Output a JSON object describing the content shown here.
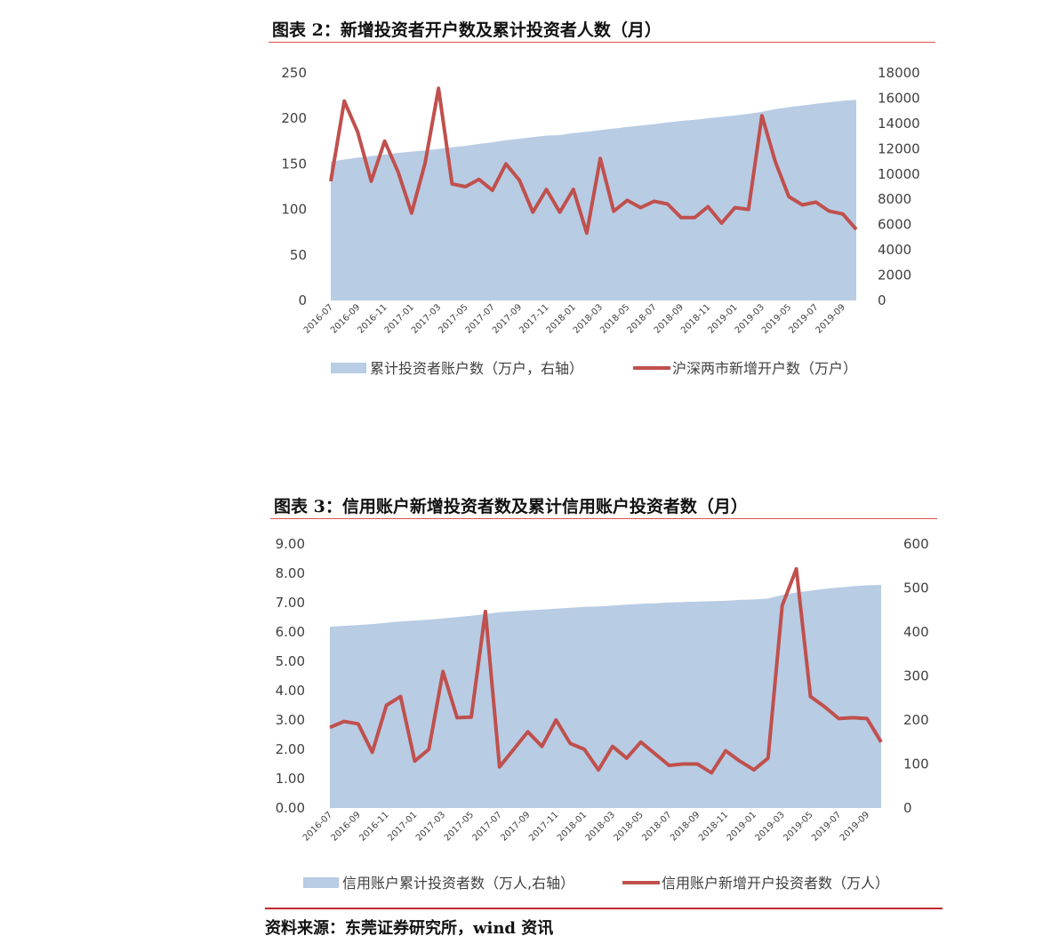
{
  "chart1_title": "图表 2：新增投资者开户数及累计投资者人数（月）",
  "chart2_title": "图表 3：信用账户新增投资者数及累计信用账户投资者数（月）",
  "source": "资料来源：东莞证券研究所，wind 资讯",
  "colors": {
    "area": "#b8cce4",
    "line": "#c0504d",
    "rule": "#d9534f"
  },
  "chart_data": [
    {
      "type": "line",
      "title": "图表 2：新增投资者开户数及累计投资者人数（月）",
      "x": [
        "2016-07",
        "2016-08",
        "2016-09",
        "2016-10",
        "2016-11",
        "2016-12",
        "2017-01",
        "2017-02",
        "2017-03",
        "2017-04",
        "2017-05",
        "2017-06",
        "2017-07",
        "2017-08",
        "2017-09",
        "2017-10",
        "2017-11",
        "2017-12",
        "2018-01",
        "2018-02",
        "2018-03",
        "2018-04",
        "2018-05",
        "2018-06",
        "2018-07",
        "2018-08",
        "2018-09",
        "2018-10",
        "2018-11",
        "2018-12",
        "2019-01",
        "2019-02",
        "2019-03",
        "2019-04",
        "2019-05",
        "2019-06",
        "2019-07",
        "2019-08",
        "2019-09",
        "2019-10"
      ],
      "x_tick_labels": [
        "2016-07",
        "2016-09",
        "2016-11",
        "2017-01",
        "2017-03",
        "2017-05",
        "2017-07",
        "2017-09",
        "2017-11",
        "2018-01",
        "2018-03",
        "2018-05",
        "2018-07",
        "2018-09",
        "2018-11",
        "2019-01",
        "2019-03",
        "2019-05",
        "2019-07",
        "2019-09"
      ],
      "y_left_ticks": [
        "0",
        "50",
        "100",
        "150",
        "200",
        "250"
      ],
      "y_right_ticks": [
        "0",
        "2000",
        "4000",
        "6000",
        "8000",
        "10000",
        "12000",
        "14000",
        "16000",
        "18000"
      ],
      "ylim_left": [
        0,
        250
      ],
      "ylim_right": [
        0,
        18000
      ],
      "grid": false,
      "legend_position": "bottom",
      "series": [
        {
          "name": "累计投资者账户数（万户，右轴）",
          "kind": "area",
          "axis": "right",
          "values": [
            10980,
            11150,
            11290,
            11420,
            11550,
            11670,
            11770,
            11860,
            11990,
            12120,
            12230,
            12380,
            12510,
            12670,
            12800,
            12920,
            13040,
            13080,
            13240,
            13340,
            13470,
            13600,
            13720,
            13840,
            13950,
            14080,
            14200,
            14290,
            14410,
            14520,
            14630,
            14760,
            14930,
            15140,
            15290,
            15420,
            15550,
            15680,
            15790,
            15880
          ]
        },
        {
          "name": "沪深两市新增开户数（万户）",
          "kind": "line",
          "axis": "left",
          "values": [
            131,
            219,
            185,
            131,
            175,
            141,
            96,
            151,
            233,
            128,
            125,
            133,
            121,
            150,
            132,
            97,
            122,
            97,
            122,
            74,
            156,
            98,
            110,
            102,
            109,
            106,
            91,
            91,
            103,
            85,
            102,
            100,
            203,
            152,
            114,
            105,
            108,
            98,
            95,
            78
          ]
        }
      ]
    },
    {
      "type": "line",
      "title": "图表 3：信用账户新增投资者数及累计信用账户投资者数（月）",
      "x": [
        "2016-07",
        "2016-08",
        "2016-09",
        "2016-10",
        "2016-11",
        "2016-12",
        "2017-01",
        "2017-02",
        "2017-03",
        "2017-04",
        "2017-05",
        "2017-06",
        "2017-07",
        "2017-08",
        "2017-09",
        "2017-10",
        "2017-11",
        "2017-12",
        "2018-01",
        "2018-02",
        "2018-03",
        "2018-04",
        "2018-05",
        "2018-06",
        "2018-07",
        "2018-08",
        "2018-09",
        "2018-10",
        "2018-11",
        "2018-12",
        "2019-01",
        "2019-02",
        "2019-03",
        "2019-04",
        "2019-05",
        "2019-06",
        "2019-07",
        "2019-08",
        "2019-09",
        "2019-10"
      ],
      "x_tick_labels": [
        "2016-07",
        "2016-09",
        "2016-11",
        "2017-01",
        "2017-03",
        "2017-05",
        "2017-07",
        "2017-09",
        "2017-11",
        "2018-01",
        "2018-03",
        "2018-05",
        "2018-07",
        "2018-09",
        "2018-11",
        "2019-01",
        "2019-03",
        "2019-05",
        "2019-07",
        "2019-09"
      ],
      "y_left_ticks": [
        "0.00",
        "1.00",
        "2.00",
        "3.00",
        "4.00",
        "5.00",
        "6.00",
        "7.00",
        "8.00",
        "9.00"
      ],
      "y_right_ticks": [
        "0",
        "100",
        "200",
        "300",
        "400",
        "500",
        "600"
      ],
      "ylim_left": [
        0,
        9
      ],
      "ylim_right": [
        0,
        600
      ],
      "grid": false,
      "legend_position": "bottom",
      "series": [
        {
          "name": "信用账户累计投资者数（万人,右轴）",
          "kind": "area",
          "axis": "right",
          "values": [
            412,
            414,
            416,
            418,
            421,
            424,
            426,
            428,
            431,
            434,
            437,
            441,
            445,
            447,
            449,
            451,
            453,
            455,
            457,
            458,
            460,
            462,
            464,
            465,
            467,
            468,
            469,
            470,
            471,
            473,
            474,
            476,
            484,
            490,
            494,
            498,
            501,
            504,
            506,
            507
          ]
        },
        {
          "name": "信用账户新增开户投资者数（万人）",
          "kind": "line",
          "axis": "left",
          "values": [
            2.75,
            2.95,
            2.87,
            1.9,
            3.5,
            3.8,
            1.6,
            2.0,
            4.65,
            3.08,
            3.1,
            6.7,
            1.4,
            2.0,
            2.6,
            2.1,
            3.0,
            2.2,
            2.0,
            1.3,
            2.1,
            1.7,
            2.25,
            1.85,
            1.45,
            1.5,
            1.5,
            1.2,
            1.95,
            1.6,
            1.3,
            1.7,
            6.9,
            8.15,
            3.8,
            3.45,
            3.05,
            3.08,
            3.05,
            2.25
          ]
        }
      ]
    }
  ]
}
